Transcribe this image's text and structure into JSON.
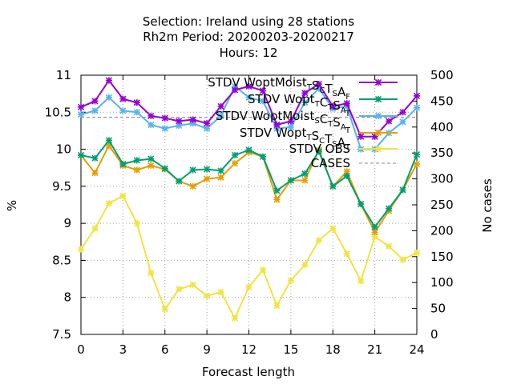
{
  "title_lines": [
    "Selection: Ireland using    28 stations",
    "Rh2m   Period: 20200203-20200217",
    "Hours:  12"
  ],
  "chart_data": {
    "type": "line",
    "title": "Selection: Ireland using    28 stations / Rh2m   Period: 20200203-20200217 / Hours:  12",
    "xlabel": "Forecast length",
    "ylabel": "%",
    "y2label": "No cases",
    "xlim": [
      0,
      24
    ],
    "ylim": [
      7.5,
      11
    ],
    "y2lim": [
      0,
      500
    ],
    "grid": true,
    "legend_position": "top-right",
    "x_ticks": [
      "0",
      "3",
      "6",
      "9",
      "12",
      "15",
      "18",
      "21",
      "24"
    ],
    "y_ticks": [
      "7.5",
      "8",
      "8.5",
      "9",
      "9.5",
      "10",
      "10.5",
      "11"
    ],
    "y2_ticks": [
      "0",
      "50",
      "100",
      "150",
      "200",
      "250",
      "300",
      "350",
      "400",
      "450",
      "500"
    ],
    "x": [
      0,
      1,
      2,
      3,
      4,
      5,
      6,
      7,
      8,
      9,
      10,
      11,
      12,
      13,
      14,
      15,
      16,
      17,
      18,
      19,
      20,
      21,
      22,
      23,
      24
    ],
    "series": [
      {
        "legend": {
          "text": "STDV WoptMoist",
          "sub1": "T",
          "mid": "S",
          "sub2": "C",
          "mid2": "T",
          "sub3": "S",
          "mid3": "A",
          "sub4": "F"
        },
        "color": "#9400d3",
        "marker": "x",
        "axis": "y",
        "values": [
          10.57,
          10.65,
          10.93,
          10.68,
          10.63,
          10.45,
          10.42,
          10.38,
          10.4,
          10.35,
          10.58,
          10.8,
          10.85,
          10.79,
          10.33,
          10.38,
          10.76,
          10.88,
          10.58,
          10.62,
          10.17,
          10.17,
          10.38,
          10.5,
          10.72
        ]
      },
      {
        "legend": {
          "text": "STDV Wopt",
          "sub1": "T",
          "mid": "C",
          "sub2": "T",
          "mid2": "S",
          "sub3": "A",
          "mid3": "",
          "sub4": "T"
        },
        "color": "#009e73",
        "marker": "x",
        "axis": "y",
        "values": [
          9.92,
          9.88,
          10.12,
          9.8,
          9.85,
          9.87,
          9.74,
          9.57,
          9.72,
          9.73,
          9.71,
          9.92,
          9.99,
          9.9,
          9.44,
          9.58,
          9.67,
          9.97,
          9.5,
          9.64,
          9.26,
          8.95,
          9.2,
          9.45,
          9.93
        ]
      },
      {
        "legend": {
          "text": "STDV WoptMoist",
          "sub1": "S",
          "mid": "C",
          "sub2": "T",
          "mid2": "S",
          "sub3": "A",
          "mid3": "",
          "sub4": "T"
        },
        "color": "#56b4e9",
        "marker": "x",
        "axis": "y",
        "values": [
          10.47,
          10.52,
          10.7,
          10.52,
          10.5,
          10.33,
          10.28,
          10.32,
          10.35,
          10.28,
          10.45,
          10.85,
          10.7,
          10.65,
          10.28,
          10.3,
          10.63,
          10.82,
          10.55,
          10.58,
          10.0,
          10.0,
          10.22,
          10.37,
          10.56
        ]
      },
      {
        "legend": {
          "text": "STDV Wopt",
          "sub1": "T",
          "mid": "S",
          "sub2": "C",
          "mid2": "T",
          "sub3": "S",
          "mid3": "A",
          "sub4": "T"
        },
        "color": "#e69f00",
        "marker": "x",
        "axis": "y",
        "values": [
          9.92,
          9.68,
          10.05,
          9.78,
          9.72,
          9.78,
          9.73,
          9.57,
          9.5,
          9.6,
          9.62,
          9.81,
          9.96,
          9.9,
          9.32,
          9.58,
          9.58,
          9.99,
          9.5,
          9.7,
          9.26,
          8.88,
          9.17,
          9.45,
          9.8
        ]
      },
      {
        "legend": {
          "text": "STDV OBS",
          "sub1": "",
          "mid": "",
          "sub2": "",
          "mid2": "",
          "sub3": "",
          "mid3": "",
          "sub4": ""
        },
        "color": "#f0e442",
        "marker": "x",
        "axis": "y",
        "values": [
          8.65,
          8.93,
          9.27,
          9.37,
          9.0,
          8.33,
          7.84,
          8.11,
          8.17,
          8.02,
          8.07,
          7.72,
          8.14,
          8.37,
          7.89,
          8.23,
          8.44,
          8.77,
          8.93,
          8.59,
          8.22,
          8.82,
          8.69,
          8.51,
          8.6
        ]
      },
      {
        "legend": {
          "text": "CASES",
          "sub1": "",
          "mid": "",
          "sub2": "",
          "mid2": "",
          "sub3": "",
          "mid3": "",
          "sub4": ""
        },
        "color": "#888888",
        "marker": "none",
        "dashed": true,
        "axis": "y2",
        "values": [
          419,
          419,
          419,
          419,
          419,
          419,
          419,
          419,
          419,
          419,
          419,
          419,
          419,
          419,
          419,
          419,
          419,
          419,
          419,
          419,
          419,
          419,
          419,
          419,
          419
        ]
      }
    ]
  }
}
